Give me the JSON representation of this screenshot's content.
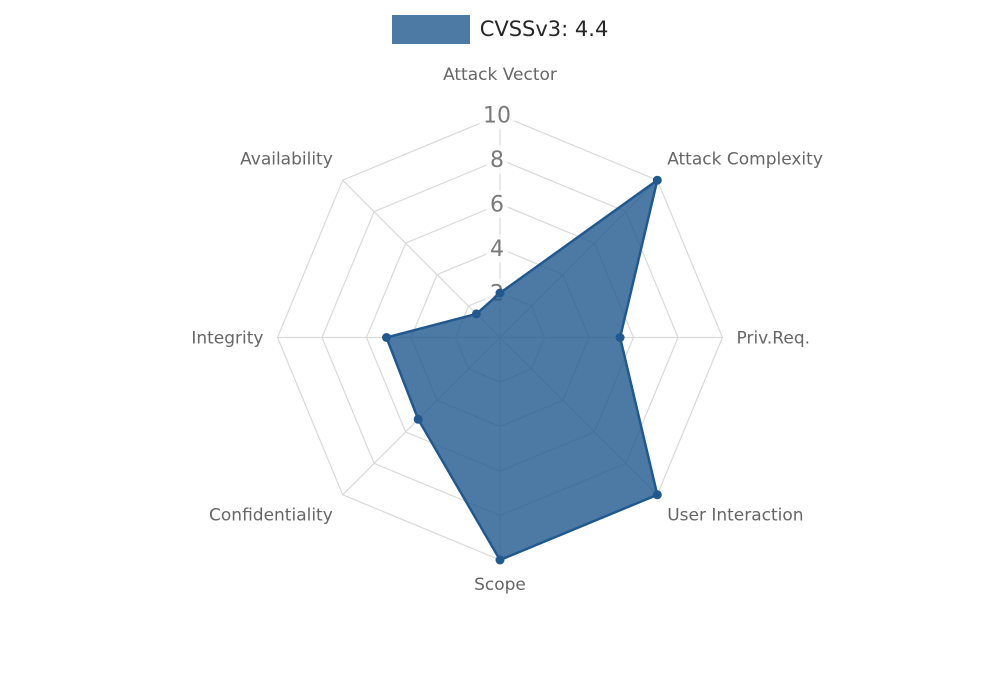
{
  "legend": {
    "label": "CVSSv3: 4.4"
  },
  "chart_data": {
    "type": "radar",
    "title": "CVSSv3: 4.4",
    "categories": [
      "Attack Vector",
      "Attack Complexity",
      "Priv.Req.",
      "User Interaction",
      "Scope",
      "Confidentiality",
      "Integrity",
      "Availability"
    ],
    "series": [
      {
        "name": "CVSSv3: 4.4",
        "values": [
          2,
          10,
          5.4,
          10,
          10,
          5.2,
          5.1,
          1.5
        ]
      }
    ],
    "rlim": [
      0,
      10
    ],
    "ticks": [
      2,
      4,
      6,
      8,
      10
    ],
    "grid": true,
    "grid_shape": "polygon-web",
    "start_axis": "top",
    "direction": "clockwise",
    "legend_position": "top",
    "colors": {
      "series_fill": "#21598F",
      "series_fill_opacity": 0.8,
      "grid_line": "#d9d9d9",
      "tick_text": "#7a7a7a",
      "tick_backdrop": "rgba(255,255,255,0.75)",
      "axis_label_text": "#666666",
      "legend_text": "#262626"
    }
  }
}
